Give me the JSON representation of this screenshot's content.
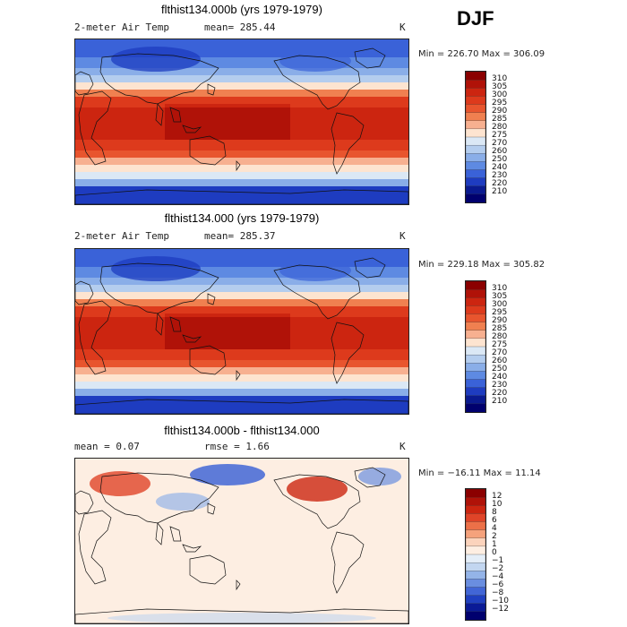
{
  "season": "DJF",
  "panels": [
    {
      "title": "flthist134.000b (yrs 1979-1979)",
      "left_label": "2-meter Air Temp",
      "mean_label": "mean= 285.44",
      "units": "K",
      "minmax": "Min = 226.70 Max = 306.09",
      "kind": "abs",
      "legend": [
        "310",
        "305",
        "300",
        "295",
        "290",
        "285",
        "280",
        "275",
        "270",
        "260",
        "250",
        "240",
        "230",
        "220",
        "210"
      ]
    },
    {
      "title": "flthist134.000 (yrs 1979-1979)",
      "left_label": "2-meter Air Temp",
      "mean_label": "mean= 285.37",
      "units": "K",
      "minmax": "Min = 229.18 Max = 305.82",
      "kind": "abs",
      "legend": [
        "310",
        "305",
        "300",
        "295",
        "290",
        "285",
        "280",
        "275",
        "270",
        "260",
        "250",
        "240",
        "230",
        "220",
        "210"
      ]
    },
    {
      "title": "flthist134.000b - flthist134.000",
      "left_label": "mean =    0.07",
      "mean_label": "rmse =    1.66",
      "units": "K",
      "minmax": "Min = −16.11 Max =  11.14",
      "kind": "diff",
      "legend": [
        "12",
        "10",
        "8",
        "6",
        "4",
        "2",
        "1",
        "0",
        "−1",
        "−2",
        "−4",
        "−6",
        "−8",
        "−10",
        "−12"
      ]
    }
  ],
  "colors": {
    "abs_scale": [
      "#8b0000",
      "#b01208",
      "#cc2510",
      "#dd3a1c",
      "#e8552e",
      "#f08050",
      "#f7b090",
      "#fde4d0",
      "#dbe8f5",
      "#b4cdee",
      "#8aaee8",
      "#5e8ae2",
      "#3a62d8",
      "#1e3cc0",
      "#0a1a90",
      "#00006e"
    ],
    "diff_scale": [
      "#8b0000",
      "#b01208",
      "#cc2510",
      "#e04428",
      "#ec7048",
      "#f5a27c",
      "#fbd3bc",
      "#fdeee2",
      "#e4eef8",
      "#c2d6f0",
      "#94b4e8",
      "#6a8ee0",
      "#4266d6",
      "#2040c0",
      "#0a1a96",
      "#00006e"
    ]
  }
}
